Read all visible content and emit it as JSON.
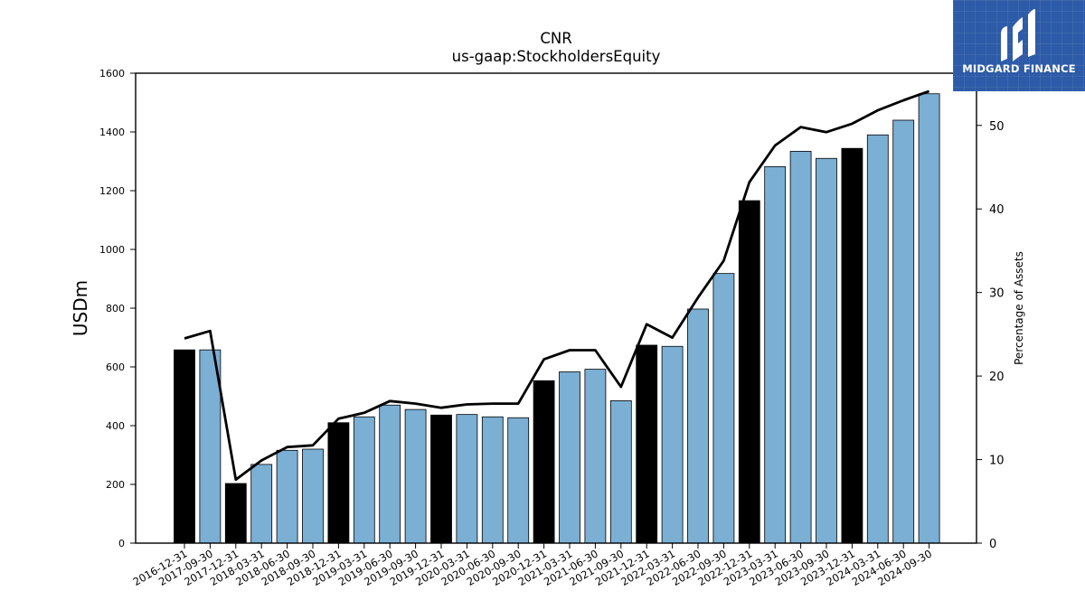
{
  "brand": {
    "name": "MIDGARD FINANCE",
    "bg_color": "#2d5ba8",
    "icon": "midgard-logo-icon"
  },
  "chart_data": {
    "type": "bar",
    "title": "CNR",
    "subtitle": "us-gaap:StockholdersEquity",
    "ylabel": "USDm",
    "y2label": "Percentage of Assets",
    "ylim": [
      0,
      1600
    ],
    "y2lim": [
      0,
      56.25
    ],
    "yticks": [
      0,
      200,
      400,
      600,
      800,
      1000,
      1200,
      1400,
      1600
    ],
    "y2ticks": [
      0,
      10,
      20,
      30,
      40,
      50
    ],
    "grid": false,
    "colors": {
      "annual": "#000000",
      "quarterly": "#7bafd4",
      "line": "#000000"
    },
    "categories": [
      "2016-12-31",
      "2017-09-30",
      "2017-12-31",
      "2018-03-31",
      "2018-06-30",
      "2018-09-30",
      "2018-12-31",
      "2019-03-31",
      "2019-06-30",
      "2019-09-30",
      "2019-12-31",
      "2020-03-31",
      "2020-06-30",
      "2020-09-30",
      "2020-12-31",
      "2021-03-31",
      "2021-06-30",
      "2021-09-30",
      "2021-12-31",
      "2022-03-31",
      "2022-06-30",
      "2022-09-30",
      "2022-12-31",
      "2023-03-31",
      "2023-06-30",
      "2023-09-30",
      "2023-12-31",
      "2024-03-31",
      "2024-06-30",
      "2024-09-30"
    ],
    "series": [
      {
        "name": "",
        "type": "bar",
        "axis": "left",
        "values": [
          658,
          658,
          203,
          268,
          316,
          320,
          410,
          430,
          470,
          455,
          436,
          438,
          430,
          427,
          553,
          583,
          592,
          485,
          674,
          670,
          797,
          918,
          1166,
          1282,
          1334,
          1310,
          1344,
          1390,
          1440,
          1530
        ],
        "annual_flags": [
          true,
          false,
          true,
          false,
          false,
          false,
          true,
          false,
          false,
          false,
          true,
          false,
          false,
          false,
          true,
          false,
          false,
          false,
          true,
          false,
          false,
          false,
          true,
          false,
          false,
          false,
          true,
          false,
          false,
          false
        ]
      },
      {
        "name": "",
        "type": "line",
        "axis": "right",
        "values": [
          24.5,
          25.4,
          7.6,
          9.9,
          11.5,
          11.7,
          14.9,
          15.6,
          17.0,
          16.7,
          16.2,
          16.6,
          16.7,
          16.7,
          22.0,
          23.1,
          23.1,
          18.7,
          26.2,
          24.6,
          29.4,
          33.8,
          43.2,
          47.6,
          49.8,
          49.2,
          50.2,
          51.8,
          53.0,
          54.1
        ]
      }
    ]
  }
}
